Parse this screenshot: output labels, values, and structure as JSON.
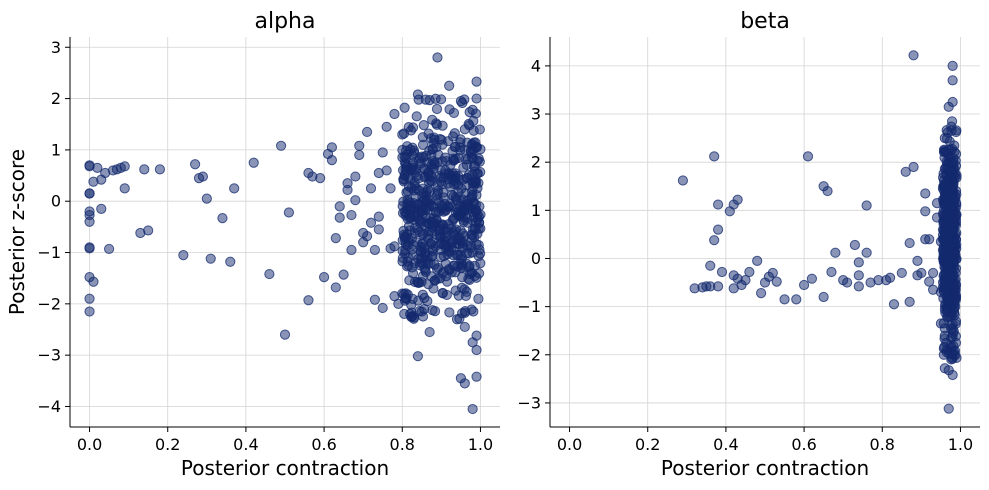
{
  "chart_data": [
    {
      "type": "scatter",
      "title": "alpha",
      "xlabel": "Posterior contraction",
      "ylabel": "Posterior z-score",
      "xlim": [
        -0.05,
        1.05
      ],
      "ylim": [
        -4.4,
        3.2
      ],
      "xticks": [
        0.0,
        0.2,
        0.4,
        0.6,
        0.8,
        1.0
      ],
      "xtick_labels": [
        "0.0",
        "0.2",
        "0.4",
        "0.6",
        "0.8",
        "1.0"
      ],
      "yticks": [
        -4,
        -3,
        -2,
        -1,
        0,
        1,
        2,
        3
      ],
      "ytick_labels": [
        "−4",
        "−3",
        "−2",
        "−1",
        "0",
        "1",
        "2",
        "3"
      ],
      "grid": true,
      "marker_color": "#132a6e",
      "sparse_points": [
        [
          0.0,
          0.7
        ],
        [
          0.0,
          0.68
        ],
        [
          0.0,
          0.15
        ],
        [
          0.0,
          0.15
        ],
        [
          0.0,
          -0.2
        ],
        [
          0.0,
          -0.27
        ],
        [
          0.0,
          -0.4
        ],
        [
          0.0,
          -0.9
        ],
        [
          0.0,
          -0.92
        ],
        [
          0.0,
          -1.48
        ],
        [
          0.0,
          -1.9
        ],
        [
          0.0,
          -2.15
        ],
        [
          0.01,
          0.38
        ],
        [
          0.01,
          -1.57
        ],
        [
          0.02,
          0.65
        ],
        [
          0.03,
          0.42
        ],
        [
          0.03,
          -0.15
        ],
        [
          0.04,
          0.55
        ],
        [
          0.05,
          -0.93
        ],
        [
          0.06,
          0.6
        ],
        [
          0.07,
          0.62
        ],
        [
          0.08,
          0.65
        ],
        [
          0.09,
          0.25
        ],
        [
          0.09,
          0.68
        ],
        [
          0.13,
          -0.62
        ],
        [
          0.14,
          0.62
        ],
        [
          0.15,
          -0.57
        ],
        [
          0.18,
          0.62
        ],
        [
          0.24,
          -1.05
        ],
        [
          0.27,
          0.72
        ],
        [
          0.28,
          0.45
        ],
        [
          0.29,
          0.48
        ],
        [
          0.3,
          0.05
        ],
        [
          0.31,
          -1.12
        ],
        [
          0.34,
          -0.33
        ],
        [
          0.36,
          -1.18
        ],
        [
          0.37,
          0.25
        ],
        [
          0.42,
          0.75
        ],
        [
          0.46,
          -1.42
        ],
        [
          0.49,
          1.08
        ],
        [
          0.5,
          -2.6
        ],
        [
          0.51,
          -0.22
        ],
        [
          0.56,
          0.55
        ],
        [
          0.56,
          -1.93
        ],
        [
          0.57,
          0.48
        ],
        [
          0.59,
          0.45
        ],
        [
          0.6,
          -1.48
        ],
        [
          0.61,
          0.92
        ],
        [
          0.62,
          1.05
        ],
        [
          0.62,
          0.8
        ],
        [
          0.63,
          -1.68
        ],
        [
          0.63,
          -0.72
        ],
        [
          0.64,
          -0.32
        ],
        [
          0.64,
          -0.1
        ],
        [
          0.65,
          -1.43
        ],
        [
          0.66,
          0.35
        ],
        [
          0.66,
          0.22
        ],
        [
          0.67,
          -0.95
        ],
        [
          0.67,
          -0.27
        ],
        [
          0.68,
          0.02
        ],
        [
          0.68,
          0.48
        ],
        [
          0.69,
          0.9
        ],
        [
          0.69,
          1.08
        ],
        [
          0.7,
          -0.62
        ],
        [
          0.7,
          -0.8
        ],
        [
          0.71,
          -0.68
        ],
        [
          0.71,
          1.35
        ],
        [
          0.72,
          0.25
        ],
        [
          0.72,
          -0.42
        ],
        [
          0.73,
          -0.95
        ],
        [
          0.73,
          -1.92
        ],
        [
          0.74,
          0.55
        ],
        [
          0.74,
          -0.55
        ],
        [
          0.74,
          -0.3
        ],
        [
          0.75,
          -2.08
        ],
        [
          0.75,
          0.95
        ],
        [
          0.76,
          0.6
        ],
        [
          0.76,
          1.45
        ],
        [
          0.77,
          0.25
        ],
        [
          0.77,
          -0.92
        ],
        [
          0.78,
          1.7
        ],
        [
          0.78,
          -1.85
        ],
        [
          0.78,
          -0.88
        ],
        [
          0.79,
          -2.0
        ],
        [
          0.8,
          1.3
        ],
        [
          0.8,
          -1.8
        ]
      ],
      "dense_cluster": {
        "x_range": [
          0.8,
          1.0
        ],
        "y_range": [
          -2.3,
          2.0
        ],
        "count": 600
      },
      "extreme_points": [
        [
          0.89,
          2.8
        ],
        [
          0.92,
          2.25
        ],
        [
          0.99,
          2.33
        ],
        [
          0.86,
          1.98
        ],
        [
          0.87,
          1.97
        ],
        [
          0.95,
          1.95
        ],
        [
          0.99,
          2.0
        ],
        [
          0.98,
          1.78
        ],
        [
          0.84,
          2.08
        ],
        [
          0.84,
          -3.02
        ],
        [
          0.87,
          -2.55
        ],
        [
          0.95,
          -3.45
        ],
        [
          0.96,
          -3.55
        ],
        [
          0.99,
          -3.42
        ],
        [
          0.98,
          -4.05
        ],
        [
          0.99,
          -2.9
        ],
        [
          0.99,
          -2.62
        ],
        [
          0.96,
          -2.45
        ],
        [
          0.94,
          -2.3
        ],
        [
          0.98,
          -2.75
        ],
        [
          0.82,
          -2.2
        ],
        [
          0.85,
          -2.15
        ]
      ]
    },
    {
      "type": "scatter",
      "title": "beta",
      "xlabel": "Posterior contraction",
      "ylabel": "",
      "xlim": [
        -0.05,
        1.05
      ],
      "ylim": [
        -3.5,
        4.6
      ],
      "xticks": [
        0.0,
        0.2,
        0.4,
        0.6,
        0.8,
        1.0
      ],
      "xtick_labels": [
        "0.0",
        "0.2",
        "0.4",
        "0.6",
        "0.8",
        "1.0"
      ],
      "yticks": [
        -3,
        -2,
        -1,
        0,
        1,
        2,
        3,
        4
      ],
      "ytick_labels": [
        "−3",
        "−2",
        "−1",
        "0",
        "1",
        "2",
        "3",
        "4"
      ],
      "grid": true,
      "marker_color": "#132a6e",
      "sparse_points": [
        [
          0.29,
          1.62
        ],
        [
          0.32,
          -0.62
        ],
        [
          0.34,
          -0.6
        ],
        [
          0.35,
          -0.58
        ],
        [
          0.36,
          -0.15
        ],
        [
          0.36,
          -0.58
        ],
        [
          0.37,
          2.12
        ],
        [
          0.37,
          0.38
        ],
        [
          0.38,
          0.6
        ],
        [
          0.38,
          -0.58
        ],
        [
          0.38,
          1.12
        ],
        [
          0.39,
          -0.28
        ],
        [
          0.41,
          0.98
        ],
        [
          0.42,
          1.12
        ],
        [
          0.42,
          -0.62
        ],
        [
          0.42,
          -0.35
        ],
        [
          0.43,
          1.22
        ],
        [
          0.43,
          -0.42
        ],
        [
          0.44,
          -0.55
        ],
        [
          0.45,
          -0.45
        ],
        [
          0.46,
          -0.28
        ],
        [
          0.48,
          -0.05
        ],
        [
          0.49,
          -0.72
        ],
        [
          0.5,
          -0.5
        ],
        [
          0.51,
          -0.38
        ],
        [
          0.52,
          -0.3
        ],
        [
          0.53,
          -0.48
        ],
        [
          0.55,
          -0.85
        ],
        [
          0.58,
          -0.85
        ],
        [
          0.6,
          -0.55
        ],
        [
          0.61,
          2.12
        ],
        [
          0.62,
          -0.42
        ],
        [
          0.65,
          -0.8
        ],
        [
          0.65,
          1.5
        ],
        [
          0.66,
          1.4
        ],
        [
          0.67,
          -0.28
        ],
        [
          0.68,
          0.12
        ],
        [
          0.7,
          -0.45
        ],
        [
          0.71,
          -0.5
        ],
        [
          0.73,
          0.28
        ],
        [
          0.74,
          -0.58
        ],
        [
          0.74,
          -0.08
        ],
        [
          0.74,
          -0.35
        ],
        [
          0.76,
          1.1
        ],
        [
          0.76,
          0.12
        ],
        [
          0.77,
          -0.5
        ],
        [
          0.79,
          -0.45
        ],
        [
          0.81,
          -0.45
        ],
        [
          0.82,
          -0.4
        ],
        [
          0.83,
          -0.95
        ],
        [
          0.85,
          -0.3
        ],
        [
          0.86,
          1.8
        ],
        [
          0.87,
          -0.9
        ],
        [
          0.87,
          0.32
        ],
        [
          0.88,
          1.9
        ],
        [
          0.88,
          4.22
        ],
        [
          0.89,
          -0.35
        ],
        [
          0.89,
          -0.05
        ],
        [
          0.9,
          -0.3
        ],
        [
          0.91,
          0.4
        ],
        [
          0.91,
          0.98
        ],
        [
          0.91,
          1.35
        ],
        [
          0.92,
          0.4
        ],
        [
          0.92,
          -0.48
        ],
        [
          0.93,
          -0.65
        ],
        [
          0.93,
          -0.3
        ],
        [
          0.94,
          0.85
        ],
        [
          0.94,
          1.15
        ],
        [
          0.95,
          0.35
        ],
        [
          0.95,
          -1.35
        ],
        [
          0.95,
          -0.7
        ],
        [
          0.96,
          1.5
        ],
        [
          0.96,
          2.5
        ],
        [
          0.97,
          3.15
        ],
        [
          0.98,
          4.0
        ],
        [
          0.98,
          3.7
        ],
        [
          0.98,
          3.25
        ],
        [
          0.97,
          -3.12
        ],
        [
          0.98,
          -2.42
        ],
        [
          0.97,
          -2.32
        ],
        [
          0.96,
          -2.28
        ],
        [
          0.98,
          -2.08
        ]
      ],
      "dense_cluster": {
        "x_range": [
          0.955,
          0.99
        ],
        "y_range": [
          -2.1,
          2.9
        ],
        "count": 500
      },
      "extreme_points": []
    }
  ]
}
